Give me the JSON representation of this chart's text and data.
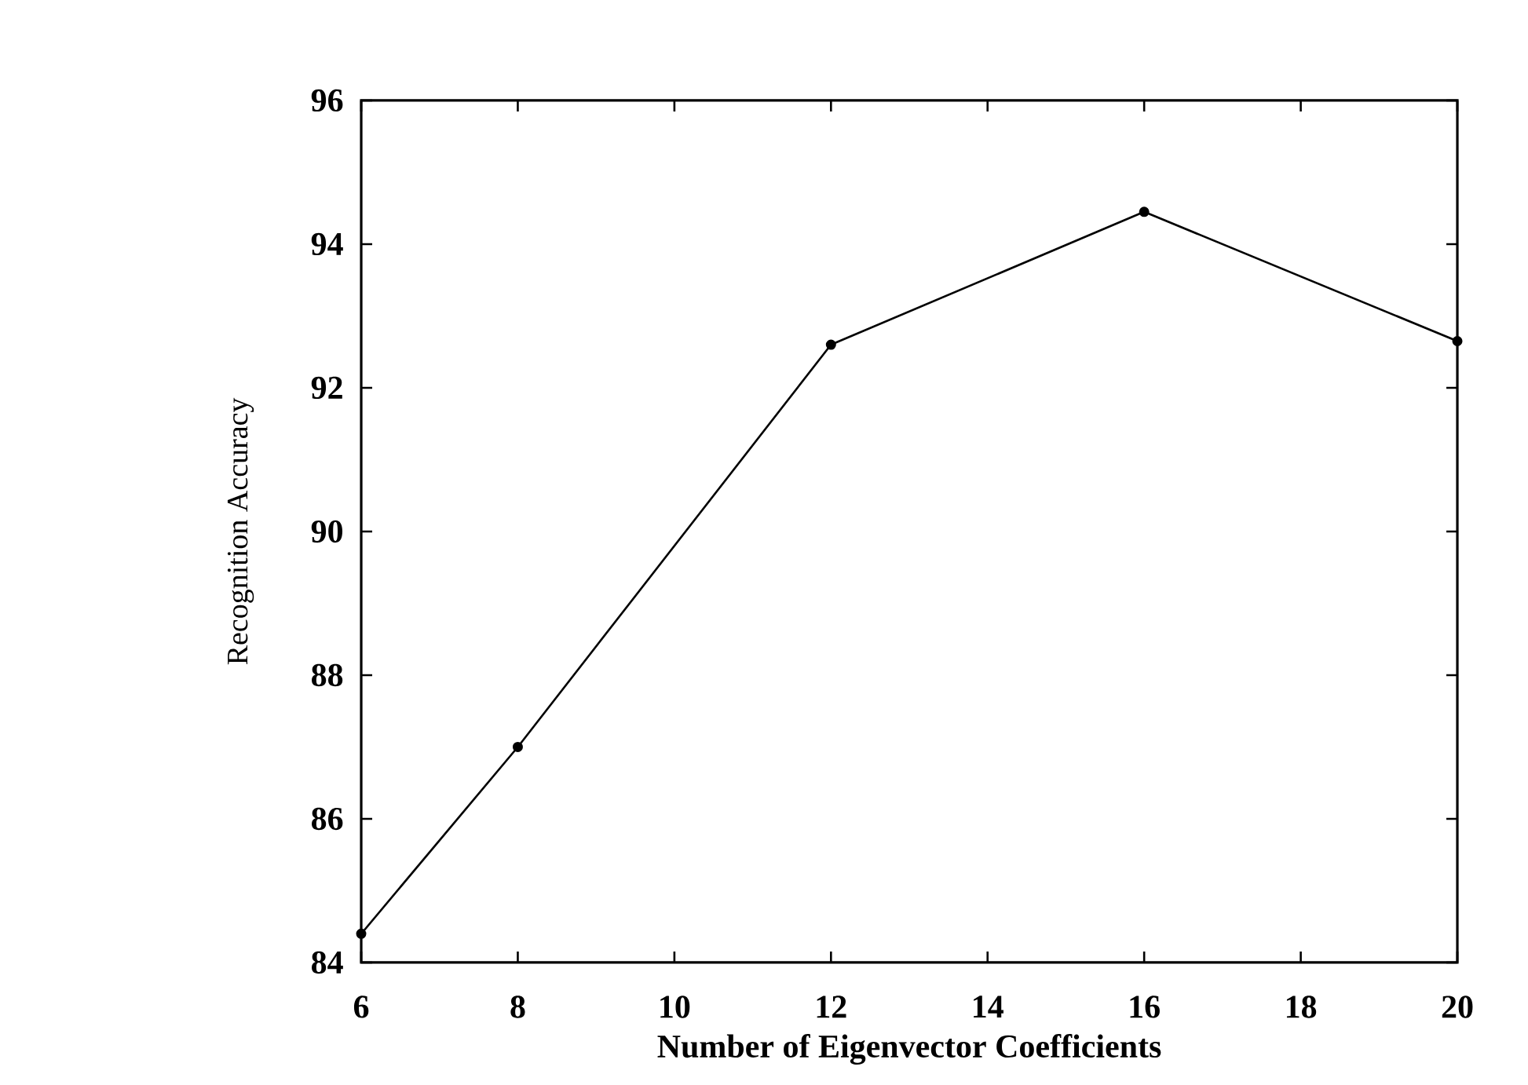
{
  "chart_data": {
    "type": "line",
    "xlabel": "Number of Eigenvector Coefficients",
    "ylabel": "Recognition Accuracy",
    "x": [
      6,
      8,
      12,
      16,
      20
    ],
    "series": [
      {
        "color": "#000000",
        "values": [
          84.4,
          87.0,
          92.6,
          94.45,
          92.65
        ]
      }
    ],
    "xlim": [
      6,
      20
    ],
    "xticks": [
      6,
      8,
      10,
      12,
      14,
      16,
      18,
      20
    ],
    "ylim": [
      84,
      96
    ],
    "yticks": [
      84,
      86,
      88,
      90,
      92,
      94,
      96
    ],
    "grid": false,
    "marker": "circle",
    "line_style": "solid"
  }
}
